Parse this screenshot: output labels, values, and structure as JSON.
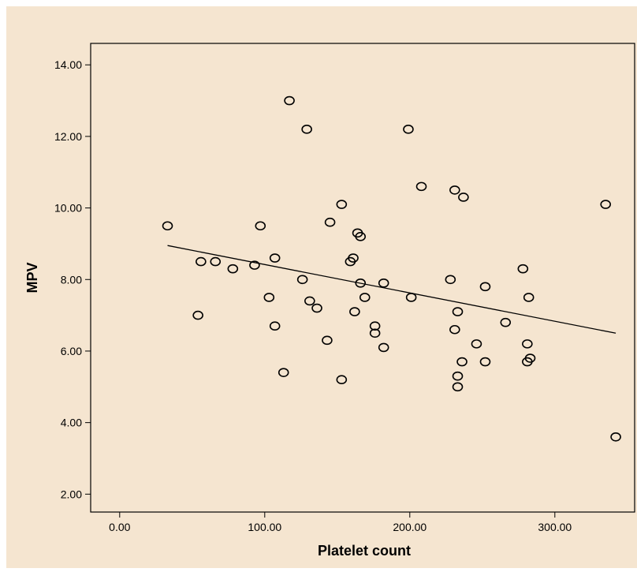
{
  "chart_data": {
    "type": "scatter",
    "title": "",
    "xlabel": "Platelet count",
    "ylabel": "MPV",
    "xlim": [
      -20,
      355
    ],
    "ylim": [
      1.5,
      14.6
    ],
    "xticks": [
      0,
      100,
      200,
      300
    ],
    "xtick_labels": [
      "0.00",
      "100.00",
      "200.00",
      "300.00"
    ],
    "yticks": [
      2,
      4,
      6,
      8,
      10,
      12,
      14
    ],
    "ytick_labels": [
      "2.00",
      "4.00",
      "6.00",
      "8.00",
      "10.00",
      "12.00",
      "14.00"
    ],
    "grid": false,
    "legend": "none",
    "colors": {
      "outer_background": "#f5e5d0",
      "plot_background": "#f5e5d0",
      "marker": "#000000",
      "fit_line": "#000000"
    },
    "points": [
      {
        "x": 33,
        "y": 9.5
      },
      {
        "x": 54,
        "y": 7.0
      },
      {
        "x": 56,
        "y": 8.5
      },
      {
        "x": 66,
        "y": 8.5
      },
      {
        "x": 78,
        "y": 8.3
      },
      {
        "x": 93,
        "y": 8.4
      },
      {
        "x": 97,
        "y": 9.5
      },
      {
        "x": 103,
        "y": 7.5
      },
      {
        "x": 107,
        "y": 8.6
      },
      {
        "x": 107,
        "y": 6.7
      },
      {
        "x": 113,
        "y": 5.4
      },
      {
        "x": 117,
        "y": 13.0
      },
      {
        "x": 126,
        "y": 8.0
      },
      {
        "x": 129,
        "y": 12.2
      },
      {
        "x": 131,
        "y": 7.4
      },
      {
        "x": 136,
        "y": 7.2
      },
      {
        "x": 143,
        "y": 6.3
      },
      {
        "x": 145,
        "y": 9.6
      },
      {
        "x": 153,
        "y": 10.1
      },
      {
        "x": 153,
        "y": 5.2
      },
      {
        "x": 159,
        "y": 8.5
      },
      {
        "x": 161,
        "y": 8.6
      },
      {
        "x": 162,
        "y": 7.1
      },
      {
        "x": 164,
        "y": 9.3
      },
      {
        "x": 166,
        "y": 9.2
      },
      {
        "x": 166,
        "y": 7.9
      },
      {
        "x": 169,
        "y": 7.5
      },
      {
        "x": 176,
        "y": 6.7
      },
      {
        "x": 176,
        "y": 6.5
      },
      {
        "x": 182,
        "y": 7.9
      },
      {
        "x": 182,
        "y": 6.1
      },
      {
        "x": 199,
        "y": 12.2
      },
      {
        "x": 201,
        "y": 7.5
      },
      {
        "x": 208,
        "y": 10.6
      },
      {
        "x": 228,
        "y": 8.0
      },
      {
        "x": 231,
        "y": 10.5
      },
      {
        "x": 231,
        "y": 6.6
      },
      {
        "x": 233,
        "y": 7.1
      },
      {
        "x": 233,
        "y": 5.3
      },
      {
        "x": 233,
        "y": 5.0
      },
      {
        "x": 236,
        "y": 5.7
      },
      {
        "x": 237,
        "y": 10.3
      },
      {
        "x": 246,
        "y": 6.2
      },
      {
        "x": 252,
        "y": 7.8
      },
      {
        "x": 252,
        "y": 5.7
      },
      {
        "x": 266,
        "y": 6.8
      },
      {
        "x": 278,
        "y": 8.3
      },
      {
        "x": 281,
        "y": 6.2
      },
      {
        "x": 281,
        "y": 5.7
      },
      {
        "x": 282,
        "y": 7.5
      },
      {
        "x": 283,
        "y": 5.8
      },
      {
        "x": 335,
        "y": 10.1
      },
      {
        "x": 342,
        "y": 3.6
      }
    ],
    "fit_line": {
      "x": [
        33,
        342
      ],
      "y": [
        8.95,
        6.5
      ]
    }
  }
}
